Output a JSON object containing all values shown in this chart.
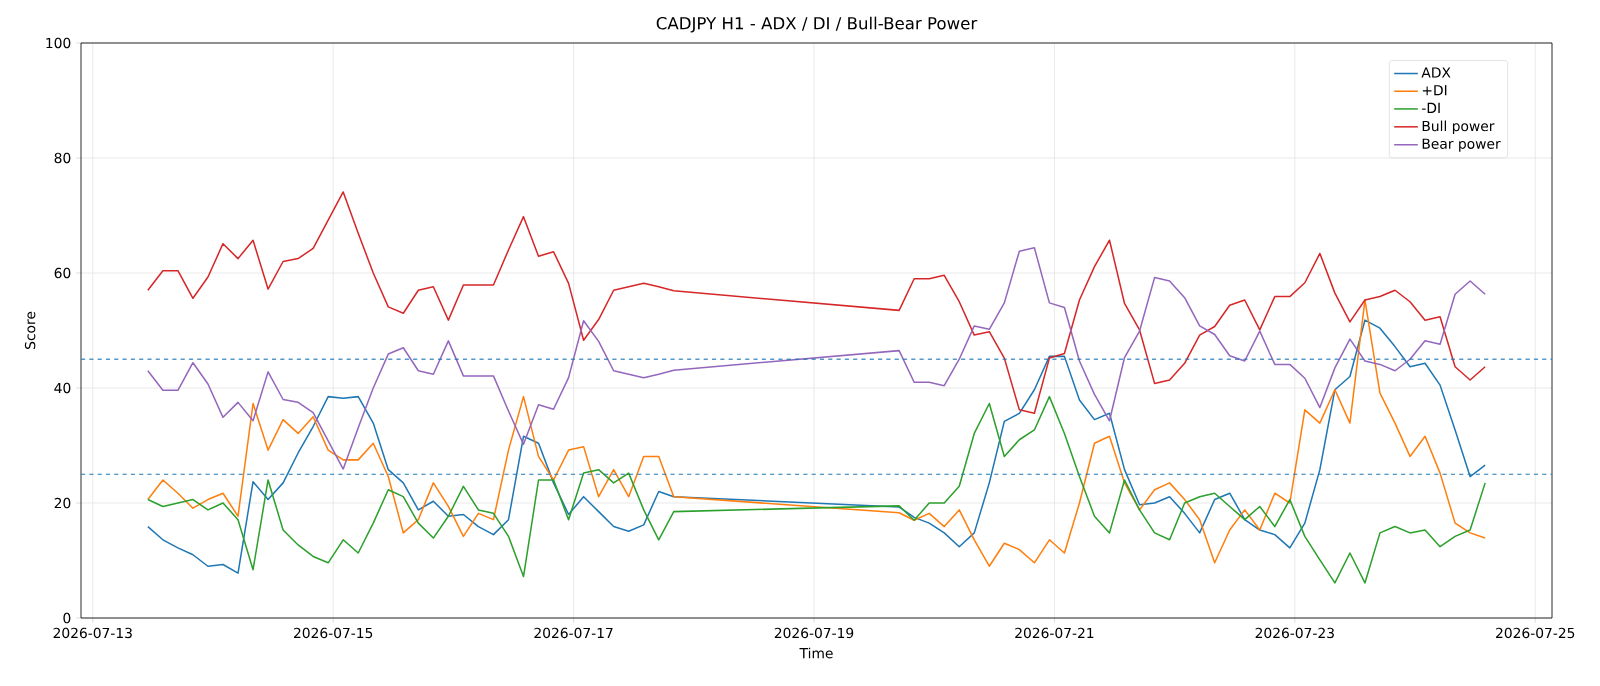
{
  "chart_data": {
    "type": "line",
    "title": "CADJPY H1 - ADX / DI / Bull-Bear Power",
    "xlabel": "Time",
    "ylabel": "Score",
    "x": [
      "2026-07-13T11:00",
      "2026-07-13T14:00",
      "2026-07-13T17:00",
      "2026-07-13T20:00",
      "2026-07-13T23:00",
      "2026-07-14T02:00",
      "2026-07-14T05:00",
      "2026-07-14T08:00",
      "2026-07-14T11:00",
      "2026-07-14T14:00",
      "2026-07-14T17:00",
      "2026-07-14T20:00",
      "2026-07-14T23:00",
      "2026-07-15T02:00",
      "2026-07-15T05:00",
      "2026-07-15T08:00",
      "2026-07-15T11:00",
      "2026-07-15T14:00",
      "2026-07-15T17:00",
      "2026-07-15T20:00",
      "2026-07-15T23:00",
      "2026-07-16T02:00",
      "2026-07-16T05:00",
      "2026-07-16T08:00",
      "2026-07-16T11:00",
      "2026-07-16T14:00",
      "2026-07-16T17:00",
      "2026-07-16T20:00",
      "2026-07-16T23:00",
      "2026-07-17T02:00",
      "2026-07-17T05:00",
      "2026-07-17T08:00",
      "2026-07-17T11:00",
      "2026-07-17T14:00",
      "2026-07-17T17:00",
      "2026-07-17T20:00",
      "2026-07-19T17:00",
      "2026-07-19T20:00",
      "2026-07-19T23:00",
      "2026-07-20T02:00",
      "2026-07-20T05:00",
      "2026-07-20T08:00",
      "2026-07-20T11:00",
      "2026-07-20T14:00",
      "2026-07-20T17:00",
      "2026-07-20T20:00",
      "2026-07-20T23:00",
      "2026-07-21T02:00",
      "2026-07-21T05:00",
      "2026-07-21T08:00",
      "2026-07-21T11:00",
      "2026-07-21T14:00",
      "2026-07-21T17:00",
      "2026-07-21T20:00",
      "2026-07-21T23:00",
      "2026-07-22T02:00",
      "2026-07-22T05:00",
      "2026-07-22T08:00",
      "2026-07-22T11:00",
      "2026-07-22T14:00",
      "2026-07-22T17:00",
      "2026-07-22T20:00",
      "2026-07-22T23:00",
      "2026-07-23T02:00",
      "2026-07-23T05:00",
      "2026-07-23T08:00",
      "2026-07-23T11:00",
      "2026-07-23T14:00",
      "2026-07-23T17:00",
      "2026-07-23T20:00",
      "2026-07-23T23:00",
      "2026-07-24T02:00",
      "2026-07-24T05:00",
      "2026-07-24T08:00",
      "2026-07-24T11:00",
      "2026-07-24T14:00"
    ],
    "series": [
      {
        "name": "ADX",
        "color": "#1f77b4",
        "values": [
          15.9,
          13.6,
          12.2,
          11,
          9,
          9.3,
          7.8,
          23.7,
          20.6,
          23.5,
          28.7,
          33.3,
          38.5,
          38.2,
          38.5,
          33.9,
          25.8,
          23.5,
          18.8,
          20.3,
          17.7,
          18,
          15.9,
          14.5,
          17.1,
          31.6,
          30.4,
          23.5,
          18,
          21.1,
          18.5,
          15.9,
          15.1,
          16.2,
          22,
          21.1,
          19.3,
          17.5,
          16.5,
          14.8,
          12.4,
          14.8,
          23.5,
          34.2,
          35.6,
          39.7,
          45.5,
          45.5,
          37.9,
          34.5,
          35.6,
          25.8,
          19.7,
          20,
          21.1,
          18.2,
          14.8,
          20.6,
          21.7,
          17.1,
          15.3,
          14.5,
          12.2,
          16.5,
          25.8,
          39.7,
          42,
          51.8,
          50.4,
          47.2,
          43.7,
          44.3,
          40.5,
          32.7,
          24.6,
          26.6
        ]
      },
      {
        "name": "+DI",
        "color": "#ff7f0e",
        "values": [
          20.6,
          24,
          21.7,
          19.1,
          20.6,
          21.7,
          17.7,
          37.3,
          29.2,
          34.5,
          32.1,
          35,
          29.2,
          27.5,
          27.5,
          30.4,
          24.6,
          14.8,
          17.1,
          23.5,
          19.4,
          14.2,
          18.2,
          17.1,
          29.2,
          38.5,
          28.1,
          24,
          29.2,
          29.8,
          21.1,
          25.8,
          21.1,
          28.1,
          28.1,
          21.1,
          18.3,
          17,
          18.2,
          15.9,
          18.8,
          13.6,
          9,
          13,
          11.9,
          9.6,
          13.6,
          11.3,
          20,
          30.4,
          31.6,
          23.5,
          18.8,
          22.3,
          23.5,
          20.6,
          17.1,
          9.6,
          15.3,
          18.8,
          15.3,
          21.7,
          20,
          36.2,
          33.9,
          39.7,
          33.9,
          55.3,
          39.1,
          33.9,
          28.1,
          31.6,
          25.2,
          16.5,
          14.8,
          13.9
        ]
      },
      {
        "name": "-DI",
        "color": "#2ca02c",
        "values": [
          20.6,
          19.4,
          20,
          20.6,
          18.8,
          20,
          17.1,
          8.4,
          24,
          15.3,
          12.7,
          10.7,
          9.6,
          13.6,
          11.3,
          16.5,
          22.3,
          21.1,
          16.5,
          13.9,
          17.7,
          22.9,
          18.8,
          18.2,
          14.2,
          7.2,
          24,
          24,
          17.1,
          25.2,
          25.8,
          23.5,
          25.2,
          18.8,
          13.6,
          18.5,
          19.5,
          17,
          20,
          20,
          22.9,
          32.1,
          37.3,
          28.1,
          31,
          32.7,
          38.5,
          32.1,
          24.6,
          17.7,
          14.8,
          24,
          18.8,
          14.8,
          13.6,
          20,
          21.1,
          21.7,
          19.4,
          17.1,
          19.4,
          15.9,
          20.6,
          14.2,
          10.1,
          6.1,
          11.3,
          6.1,
          14.8,
          15.9,
          14.8,
          15.3,
          12.4,
          14.2,
          15.3,
          23.5
        ]
      },
      {
        "name": "Bull power",
        "color": "#d62728",
        "values": [
          57,
          60.4,
          60.4,
          55.6,
          59.3,
          65.1,
          62.5,
          65.7,
          57.2,
          62,
          62.5,
          64.3,
          69.2,
          74.1,
          66.9,
          60,
          54.1,
          53,
          57,
          57.6,
          51.8,
          57.9,
          57.9,
          57.9,
          64,
          69.8,
          62.9,
          63.7,
          58.2,
          48.3,
          51.9,
          57,
          57.6,
          58.2,
          57.6,
          56.9,
          53.5,
          59,
          59,
          59.6,
          55,
          49.2,
          49.8,
          45.2,
          36.2,
          35.6,
          45.2,
          46,
          55.3,
          61.1,
          65.7,
          54.7,
          50.1,
          40.8,
          41.4,
          44.3,
          49.2,
          50.7,
          54.4,
          55.3,
          50.1,
          55.9,
          55.9,
          58.3,
          63.4,
          56.5,
          51.5,
          55.3,
          55.9,
          57,
          55,
          51.8,
          52.4,
          43.7,
          41.4,
          43.7
        ]
      },
      {
        "name": "Bear power",
        "color": "#9467bd",
        "values": [
          43,
          39.6,
          39.6,
          44.4,
          40.7,
          34.9,
          37.5,
          34.3,
          42.8,
          38,
          37.5,
          35.7,
          30.8,
          25.9,
          33.1,
          40,
          45.9,
          47,
          43,
          42.4,
          48.2,
          42.1,
          42.1,
          42.1,
          36,
          30.2,
          37.1,
          36.3,
          41.8,
          51.7,
          48.1,
          43,
          42.4,
          41.8,
          42.4,
          43.1,
          46.5,
          41,
          41,
          40.4,
          45,
          50.8,
          50.2,
          54.8,
          63.8,
          64.4,
          54.8,
          54,
          44.7,
          38.9,
          34.3,
          45.3,
          49.9,
          59.2,
          58.6,
          55.7,
          50.8,
          49.3,
          45.6,
          44.7,
          49.9,
          44.1,
          44.1,
          41.7,
          36.6,
          43.5,
          48.5,
          44.7,
          44.1,
          43,
          45,
          48.2,
          47.6,
          56.3,
          58.6,
          56.3
        ]
      }
    ],
    "xlim": [
      "2026-07-12T21:39",
      "2026-07-25T03:21"
    ],
    "xticks": [
      "2026-07-13",
      "2026-07-15",
      "2026-07-17",
      "2026-07-19",
      "2026-07-21",
      "2026-07-23",
      "2026-07-25"
    ],
    "ylim": [
      0,
      100
    ],
    "yticks": [
      0,
      20,
      40,
      60,
      80,
      100
    ],
    "ref_lines": [
      {
        "axis": "y",
        "value": 45,
        "color": "#1f77b4",
        "line_style": "dashed"
      },
      {
        "axis": "y",
        "value": 25,
        "color": "#1f77b4",
        "line_style": "dashed"
      }
    ],
    "grid": true,
    "legend": "top right"
  }
}
